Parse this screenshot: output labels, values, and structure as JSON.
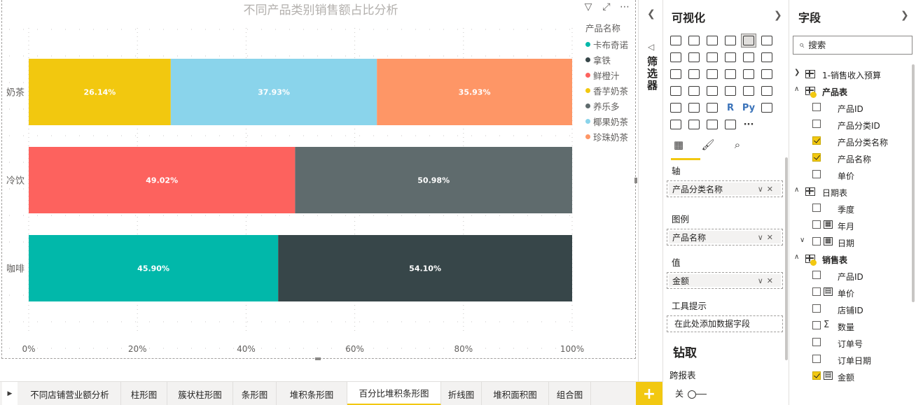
{
  "report": {
    "chart": {
      "title": "不同产品类别销售额占比分析",
      "toolbar": {
        "filter_icon": "filter-icon",
        "focus_icon": "focus-mode-icon",
        "more_icon": "more-options-icon"
      }
    }
  },
  "chart_data": {
    "type": "bar",
    "orientation": "horizontal",
    "stacking": "percent",
    "title": "不同产品类别销售额占比分析",
    "categories": [
      "奶茶",
      "冷饮",
      "咖啡"
    ],
    "xlim": [
      0,
      100
    ],
    "x_ticks": [
      "0%",
      "20%",
      "40%",
      "60%",
      "80%",
      "100%"
    ],
    "grid": true,
    "legend": {
      "title": "产品名称",
      "placement": "right",
      "entries": [
        "卡布奇诺",
        "拿铁",
        "鲜橙汁",
        "香芋奶茶",
        "养乐多",
        "椰果奶茶",
        "珍珠奶茶"
      ]
    },
    "colors": {
      "卡布奇诺": "#01b8aa",
      "拿铁": "#374649",
      "鲜橙汁": "#fd625e",
      "香芋奶茶": "#f2c80f",
      "养乐多": "#5f6b6d",
      "椰果奶茶": "#8ad4eb",
      "珍珠奶茶": "#fe9666"
    },
    "bars": [
      {
        "category": "奶茶",
        "segments": [
          {
            "series": "香芋奶茶",
            "value": 26.14,
            "label": "26.14%"
          },
          {
            "series": "椰果奶茶",
            "value": 37.93,
            "label": "37.93%"
          },
          {
            "series": "珍珠奶茶",
            "value": 35.93,
            "label": "35.93%"
          }
        ]
      },
      {
        "category": "冷饮",
        "segments": [
          {
            "series": "鲜橙汁",
            "value": 49.02,
            "label": "49.02%"
          },
          {
            "series": "养乐多",
            "value": 50.98,
            "label": "50.98%"
          }
        ]
      },
      {
        "category": "咖啡",
        "segments": [
          {
            "series": "卡布奇诺",
            "value": 45.9,
            "label": "45.90%"
          },
          {
            "series": "拿铁",
            "value": 54.1,
            "label": "54.10%"
          }
        ]
      }
    ]
  },
  "filters_pane": {
    "label": "筛选器"
  },
  "viz_pane": {
    "title": "可视化",
    "icons": [
      "stacked-bar-icon",
      "stacked-column-icon",
      "clustered-bar-icon",
      "clustered-column-icon",
      "100-stacked-bar-icon",
      "100-stacked-column-icon",
      "line-chart-icon",
      "area-chart-icon",
      "stacked-area-icon",
      "line-clustered-column-icon",
      "line-stacked-column-icon",
      "ribbon-chart-icon",
      "waterfall-icon",
      "funnel-icon",
      "scatter-icon",
      "pie-chart-icon",
      "donut-chart-icon",
      "treemap-icon",
      "map-icon",
      "filled-map-icon",
      "gauge-icon",
      "card-icon",
      "multi-row-card-icon",
      "kpi-icon",
      "slicer-icon",
      "table-icon",
      "matrix-icon",
      "r-visual-icon",
      "python-visual-icon",
      "key-influencers-icon",
      "decomposition-tree-icon",
      "qa-icon",
      "arcgis-map-icon",
      "smart-narrative-icon",
      "more-visuals-icon"
    ],
    "selected_icon": "100-stacked-bar-icon",
    "r_text": "R",
    "py_text": "Py",
    "more_text": "···",
    "wells": {
      "axis": {
        "label": "轴",
        "field": "产品分类名称"
      },
      "legend": {
        "label": "图例",
        "field": "产品名称"
      },
      "value": {
        "label": "值",
        "field": "金额"
      },
      "tooltip": {
        "label": "工具提示",
        "placeholder": "在此处添加数据字段"
      }
    },
    "drill": {
      "title": "钻取",
      "cross_report_label": "跨报表",
      "toggle_label": "关"
    }
  },
  "fields_pane": {
    "title": "字段",
    "search_placeholder": "搜索",
    "rows": [
      {
        "kind": "table",
        "expanded": false,
        "name": "1-销售收入预算",
        "badge": false,
        "bold": false
      },
      {
        "kind": "table",
        "expanded": true,
        "name": "产品表",
        "badge": true,
        "bold": true
      },
      {
        "kind": "field",
        "name": "产品ID",
        "checked": false,
        "icon": ""
      },
      {
        "kind": "field",
        "name": "产品分类ID",
        "checked": false,
        "icon": ""
      },
      {
        "kind": "field",
        "name": "产品分类名称",
        "checked": true,
        "icon": ""
      },
      {
        "kind": "field",
        "name": "产品名称",
        "checked": true,
        "icon": ""
      },
      {
        "kind": "field",
        "name": "单价",
        "checked": false,
        "icon": ""
      },
      {
        "kind": "table",
        "expanded": true,
        "name": "日期表",
        "badge": false,
        "bold": false
      },
      {
        "kind": "field",
        "name": "季度",
        "checked": false,
        "icon": ""
      },
      {
        "kind": "field",
        "name": "年月",
        "checked": false,
        "icon": "calendar"
      },
      {
        "kind": "field",
        "name": "日期",
        "checked": false,
        "icon": "calendar",
        "expandable": true
      },
      {
        "kind": "table",
        "expanded": true,
        "name": "销售表",
        "badge": true,
        "bold": true
      },
      {
        "kind": "field",
        "name": "产品ID",
        "checked": false,
        "icon": ""
      },
      {
        "kind": "field",
        "name": "单价",
        "checked": false,
        "icon": "calc"
      },
      {
        "kind": "field",
        "name": "店铺ID",
        "checked": false,
        "icon": ""
      },
      {
        "kind": "field",
        "name": "数量",
        "checked": false,
        "icon": "sigma"
      },
      {
        "kind": "field",
        "name": "订单号",
        "checked": false,
        "icon": ""
      },
      {
        "kind": "field",
        "name": "订单日期",
        "checked": false,
        "icon": ""
      },
      {
        "kind": "field",
        "name": "金额",
        "checked": true,
        "icon": "calc"
      }
    ]
  },
  "page_tabs": {
    "tabs": [
      "不同店铺营业额分析",
      "柱形图",
      "簇状柱形图",
      "条形图",
      "堆积条形图",
      "百分比堆积条形图",
      "折线图",
      "堆积面积图",
      "组合图"
    ],
    "active_index": 5,
    "add_label": "+"
  }
}
